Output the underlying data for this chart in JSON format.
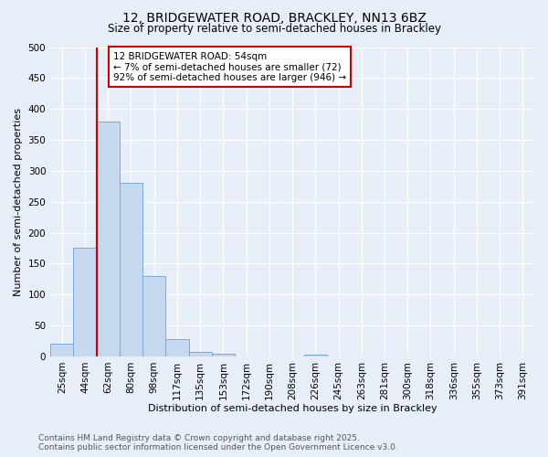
{
  "title_line1": "12, BRIDGEWATER ROAD, BRACKLEY, NN13 6BZ",
  "title_line2": "Size of property relative to semi-detached houses in Brackley",
  "xlabel": "Distribution of semi-detached houses by size in Brackley",
  "ylabel": "Number of semi-detached properties",
  "categories": [
    "25sqm",
    "44sqm",
    "62sqm",
    "80sqm",
    "98sqm",
    "117sqm",
    "135sqm",
    "153sqm",
    "172sqm",
    "190sqm",
    "208sqm",
    "226sqm",
    "245sqm",
    "263sqm",
    "281sqm",
    "300sqm",
    "318sqm",
    "336sqm",
    "355sqm",
    "373sqm",
    "391sqm"
  ],
  "values": [
    20,
    175,
    380,
    280,
    130,
    28,
    8,
    4,
    0,
    0,
    0,
    3,
    0,
    0,
    0,
    0,
    0,
    0,
    0,
    0,
    0
  ],
  "bar_color": "#c5d8f0",
  "bar_edge_color": "#7aabdb",
  "vline_x": 1.5,
  "annotation_title": "12 BRIDGEWATER ROAD: 54sqm",
  "annotation_line2": "← 7% of semi-detached houses are smaller (72)",
  "annotation_line3": "92% of semi-detached houses are larger (946) →",
  "annotation_box_color": "#ffffff",
  "annotation_box_edge": "#cc0000",
  "vline_color": "#cc0000",
  "ylim": [
    0,
    500
  ],
  "yticks": [
    0,
    50,
    100,
    150,
    200,
    250,
    300,
    350,
    400,
    450,
    500
  ],
  "footer_line1": "Contains HM Land Registry data © Crown copyright and database right 2025.",
  "footer_line2": "Contains public sector information licensed under the Open Government Licence v3.0.",
  "background_color": "#e8eef8",
  "plot_bg_color": "#e8eef8",
  "grid_color": "#ffffff",
  "title_fontsize": 10,
  "subtitle_fontsize": 8.5,
  "axis_label_fontsize": 8,
  "tick_fontsize": 7.5,
  "annotation_fontsize": 7.5,
  "footer_fontsize": 6.5
}
